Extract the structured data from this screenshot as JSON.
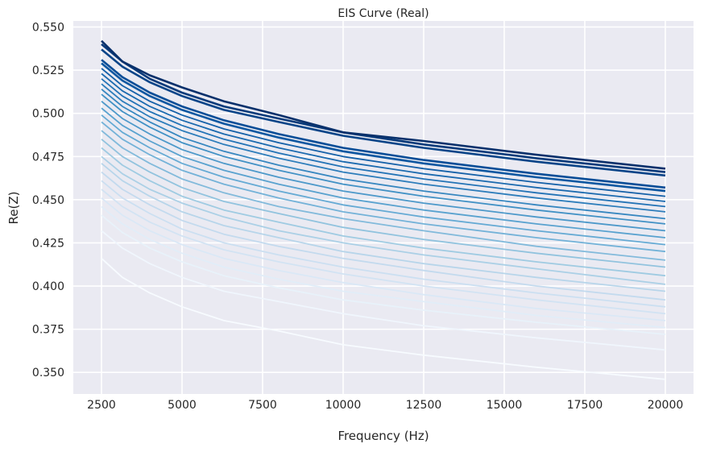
{
  "chart_data": {
    "type": "line",
    "title": "EIS Curve (Real)",
    "xlabel": "Frequency (Hz)",
    "ylabel": "Re(Z)",
    "x": [
      2500,
      3150,
      4000,
      5000,
      6300,
      8000,
      10000,
      12500,
      16000,
      20000
    ],
    "xlim": [
      1625,
      20875
    ],
    "ylim": [
      0.3375,
      0.5535
    ],
    "xticks": [
      2500,
      5000,
      7500,
      10000,
      12500,
      15000,
      17500,
      20000
    ],
    "yticks": [
      0.35,
      0.375,
      0.4,
      0.425,
      0.45,
      0.475,
      0.5,
      0.525,
      0.55
    ],
    "ytick_labels": [
      "0.350",
      "0.375",
      "0.400",
      "0.425",
      "0.450",
      "0.475",
      "0.500",
      "0.525",
      "0.550"
    ],
    "grid": true,
    "colormap": "Blues",
    "background": "#eaeaf2",
    "series": [
      {
        "values": [
          0.416,
          0.405,
          0.396,
          0.388,
          0.38,
          0.374,
          0.366,
          0.36,
          0.353,
          0.346
        ]
      },
      {
        "values": [
          0.432,
          0.422,
          0.413,
          0.405,
          0.397,
          0.391,
          0.384,
          0.377,
          0.37,
          0.363
        ]
      },
      {
        "values": [
          0.441,
          0.431,
          0.422,
          0.414,
          0.406,
          0.399,
          0.392,
          0.386,
          0.379,
          0.372
        ]
      },
      {
        "values": [
          0.446,
          0.436,
          0.427,
          0.419,
          0.411,
          0.404,
          0.397,
          0.391,
          0.383,
          0.376
        ]
      },
      {
        "values": [
          0.451,
          0.441,
          0.432,
          0.424,
          0.416,
          0.409,
          0.402,
          0.395,
          0.387,
          0.38
        ]
      },
      {
        "values": [
          0.456,
          0.446,
          0.437,
          0.429,
          0.421,
          0.414,
          0.407,
          0.4,
          0.392,
          0.384
        ]
      },
      {
        "values": [
          0.461,
          0.451,
          0.442,
          0.433,
          0.425,
          0.418,
          0.411,
          0.404,
          0.396,
          0.388
        ]
      },
      {
        "values": [
          0.466,
          0.456,
          0.447,
          0.438,
          0.43,
          0.423,
          0.416,
          0.409,
          0.4,
          0.392
        ]
      },
      {
        "values": [
          0.471,
          0.461,
          0.452,
          0.443,
          0.435,
          0.428,
          0.42,
          0.413,
          0.405,
          0.397
        ]
      },
      {
        "values": [
          0.475,
          0.465,
          0.456,
          0.448,
          0.44,
          0.432,
          0.425,
          0.418,
          0.41,
          0.401
        ]
      },
      {
        "values": [
          0.48,
          0.47,
          0.461,
          0.452,
          0.444,
          0.437,
          0.429,
          0.422,
          0.414,
          0.406
        ]
      },
      {
        "values": [
          0.485,
          0.475,
          0.466,
          0.457,
          0.449,
          0.442,
          0.434,
          0.427,
          0.419,
          0.411
        ]
      },
      {
        "values": [
          0.49,
          0.48,
          0.471,
          0.462,
          0.454,
          0.446,
          0.439,
          0.432,
          0.423,
          0.415
        ]
      },
      {
        "values": [
          0.495,
          0.485,
          0.476,
          0.467,
          0.459,
          0.451,
          0.443,
          0.436,
          0.428,
          0.42
        ]
      },
      {
        "values": [
          0.499,
          0.489,
          0.48,
          0.471,
          0.463,
          0.455,
          0.447,
          0.44,
          0.432,
          0.424
        ]
      },
      {
        "values": [
          0.503,
          0.493,
          0.484,
          0.475,
          0.467,
          0.459,
          0.451,
          0.444,
          0.436,
          0.428
        ]
      },
      {
        "values": [
          0.507,
          0.497,
          0.488,
          0.479,
          0.471,
          0.463,
          0.455,
          0.448,
          0.44,
          0.432
        ]
      },
      {
        "values": [
          0.511,
          0.501,
          0.492,
          0.483,
          0.475,
          0.467,
          0.459,
          0.452,
          0.444,
          0.436
        ]
      },
      {
        "values": [
          0.514,
          0.504,
          0.495,
          0.486,
          0.478,
          0.47,
          0.462,
          0.455,
          0.447,
          0.439
        ]
      },
      {
        "values": [
          0.517,
          0.507,
          0.498,
          0.49,
          0.482,
          0.474,
          0.466,
          0.459,
          0.451,
          0.443
        ]
      },
      {
        "values": [
          0.52,
          0.51,
          0.501,
          0.493,
          0.485,
          0.477,
          0.469,
          0.462,
          0.454,
          0.446
        ]
      },
      {
        "values": [
          0.523,
          0.513,
          0.504,
          0.496,
          0.488,
          0.48,
          0.472,
          0.465,
          0.457,
          0.449
        ]
      },
      {
        "values": [
          0.526,
          0.516,
          0.507,
          0.499,
          0.491,
          0.483,
          0.475,
          0.468,
          0.46,
          0.452
        ]
      },
      {
        "values": [
          0.529,
          0.519,
          0.51,
          0.502,
          0.494,
          0.486,
          0.478,
          0.471,
          0.463,
          0.455
        ]
      },
      {
        "values": [
          0.531,
          0.521,
          0.512,
          0.504,
          0.496,
          0.488,
          0.48,
          0.473,
          0.465,
          0.457
        ]
      },
      {
        "values": [
          0.537,
          0.527,
          0.518,
          0.51,
          0.502,
          0.495,
          0.487,
          0.48,
          0.472,
          0.464
        ]
      },
      {
        "values": [
          0.54,
          0.53,
          0.52,
          0.512,
          0.504,
          0.497,
          0.489,
          0.482,
          0.474,
          0.466
        ]
      },
      {
        "values": [
          0.542,
          0.53,
          0.522,
          0.515,
          0.507,
          0.499,
          0.489,
          0.484,
          0.476,
          0.468
        ]
      }
    ]
  }
}
